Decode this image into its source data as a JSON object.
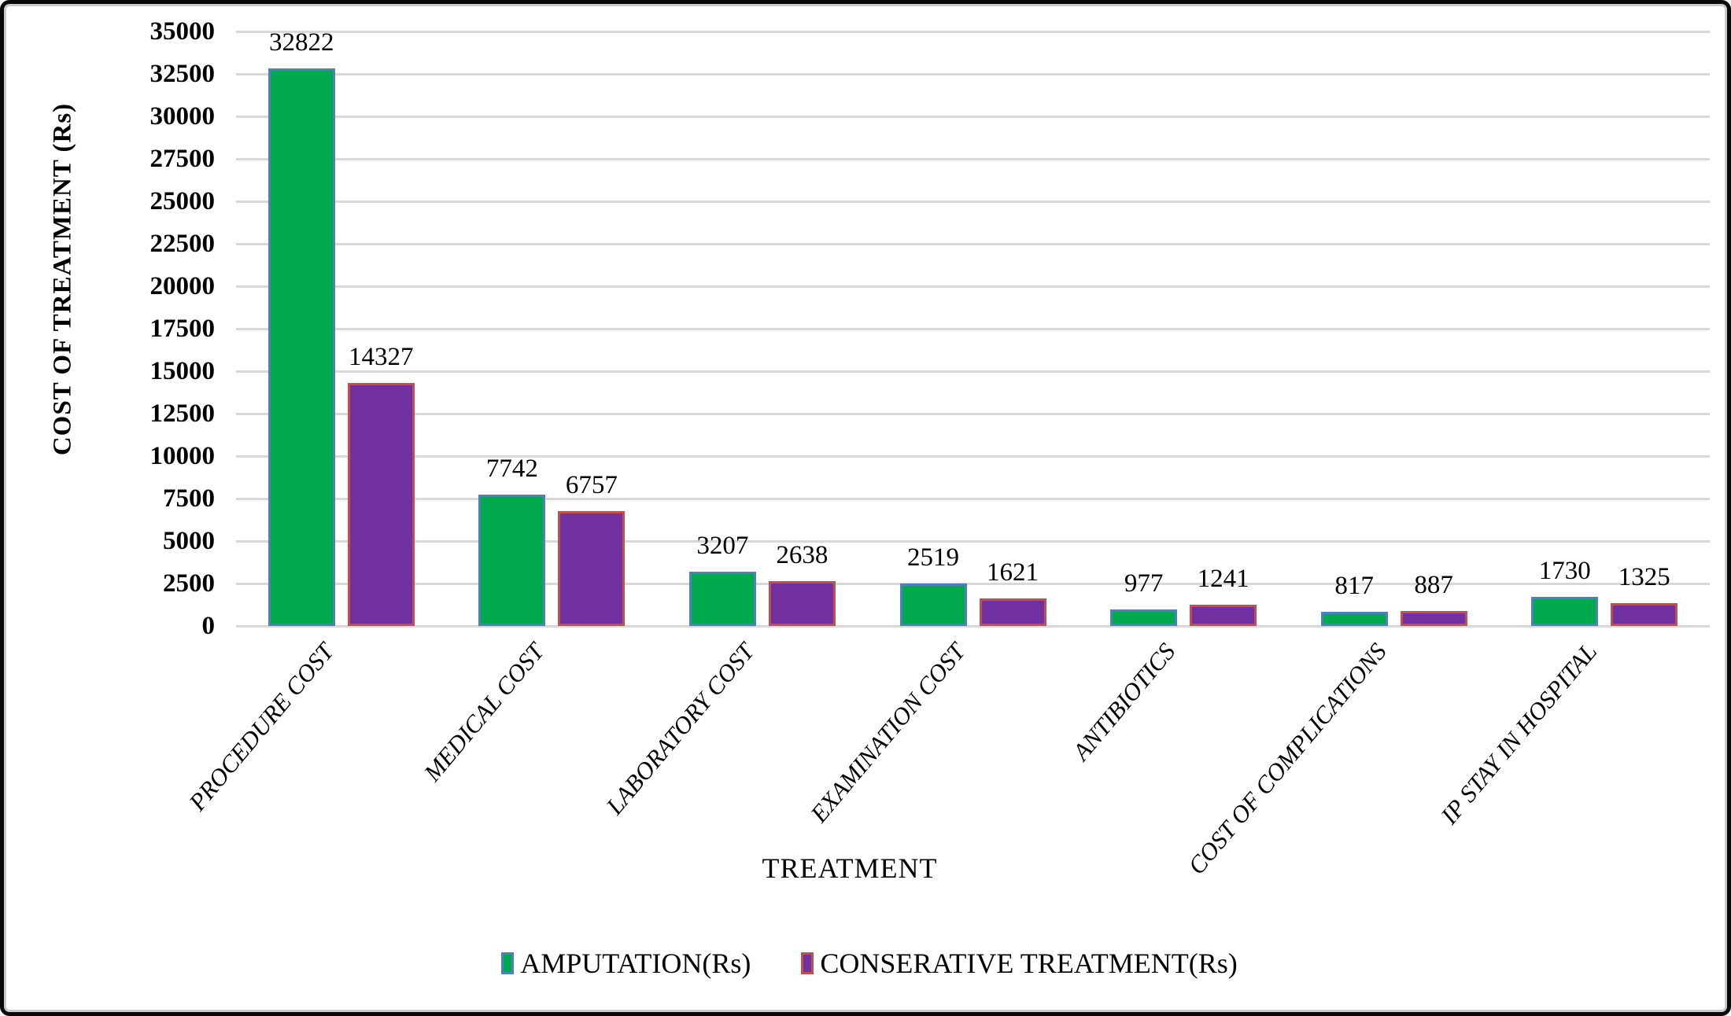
{
  "chart_data": {
    "type": "bar",
    "title": "",
    "categories": [
      "PROCEDURE COST",
      "MEDICAL COST",
      "LABORATORY COST",
      "EXAMINATION COST",
      "ANTIBIOTICS",
      "COST OF COMPLICATIONS",
      "IP STAY IN HOSPITAL"
    ],
    "series": [
      {
        "name": "AMPUTATION(Rs)",
        "fill": "#00A84E",
        "border": "#4E80BC",
        "values": [
          32822,
          7742,
          3207,
          2519,
          977,
          817,
          1730
        ]
      },
      {
        "name": "CONSERATIVE TREATMENT(Rs)",
        "fill": "#7030A0",
        "border": "#C0504D",
        "values": [
          14327,
          6757,
          2638,
          1621,
          1241,
          887,
          1325
        ]
      }
    ],
    "xlabel": "TREATMENT",
    "ylabel": "COST OF TREATMENT (Rs)",
    "ylim": [
      0,
      35000
    ],
    "yticks": [
      0,
      2500,
      5000,
      7500,
      10000,
      12500,
      15000,
      17500,
      20000,
      22500,
      25000,
      27500,
      30000,
      32500,
      35000
    ],
    "grid": true,
    "gridline_color": "#d8d8d8",
    "data_labels": true,
    "legend_position": "bottom",
    "category_label_angle_deg": -50
  }
}
